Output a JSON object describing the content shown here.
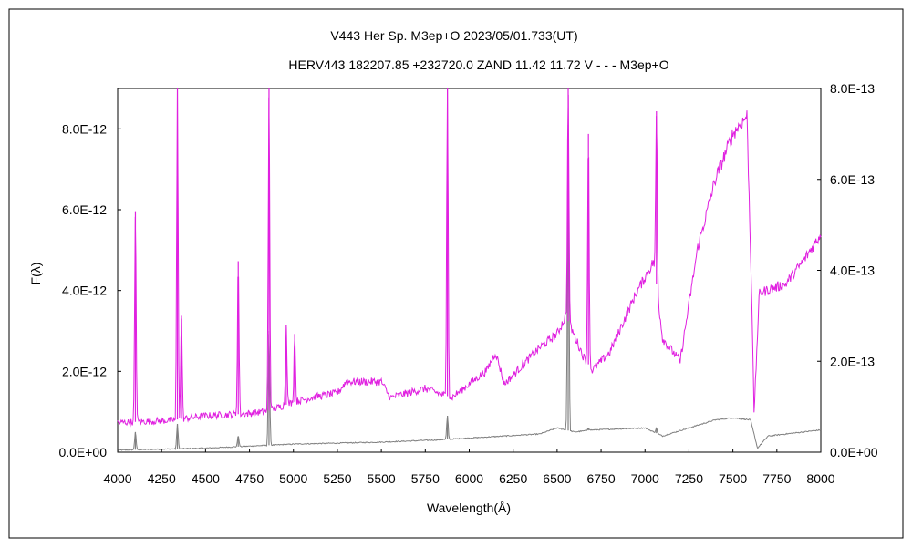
{
  "chart_data": {
    "type": "line",
    "title_line1": "V443 Her    Sp. M3ep+O    2023/05/01.733(UT)",
    "title_line2": "HERV443 182207.85 +232720.0 ZAND 11.42 11.72 V - - - M3ep+O",
    "xlabel": "Wavelength(Å)",
    "ylabel": "F(λ)",
    "xlim": [
      4000,
      8000
    ],
    "x_ticks": [
      4000,
      4250,
      4500,
      4750,
      5000,
      5250,
      5500,
      5750,
      6000,
      6250,
      6500,
      6750,
      7000,
      7250,
      7500,
      7750,
      8000
    ],
    "x_tick_labels": [
      "4000",
      "4250",
      "4500",
      "4750",
      "5000",
      "5250",
      "5500",
      "5750",
      "6000",
      "6250",
      "6500",
      "6750",
      "7000",
      "7250",
      "7500",
      "7750",
      "8000"
    ],
    "y_left": {
      "lim": [
        0,
        9e-12
      ],
      "ticks": [
        0,
        2e-12,
        4e-12,
        6e-12,
        8e-12
      ],
      "tick_labels": [
        "0.0E+00",
        "2.0E-12",
        "4.0E-12",
        "6.0E-12",
        "8.0E-12"
      ]
    },
    "y_right": {
      "lim": [
        0,
        8e-13
      ],
      "ticks": [
        0,
        2e-13,
        4e-13,
        6e-13,
        8e-13
      ],
      "tick_labels": [
        "0.0E+00",
        "2.0E-13",
        "4.0E-13",
        "6.0E-13",
        "8.0E-13"
      ],
      "color": "#e020e0"
    },
    "grid": false,
    "series": [
      {
        "axis": "left",
        "color": "#808080",
        "continuum": [
          [
            4000,
            5e-14
          ],
          [
            4500,
            1e-13
          ],
          [
            5000,
            2e-13
          ],
          [
            5500,
            2.5e-13
          ],
          [
            5800,
            3e-13
          ],
          [
            6000,
            3.5e-13
          ],
          [
            6200,
            4e-13
          ],
          [
            6400,
            4.5e-13
          ],
          [
            6500,
            6e-13
          ],
          [
            6600,
            5e-13
          ],
          [
            6700,
            5.5e-13
          ],
          [
            7000,
            6e-13
          ],
          [
            7100,
            4e-13
          ],
          [
            7250,
            6e-13
          ],
          [
            7400,
            8e-13
          ],
          [
            7500,
            8.5e-13
          ],
          [
            7600,
            8e-13
          ],
          [
            7640,
            1e-13
          ],
          [
            7700,
            4e-13
          ],
          [
            8000,
            5.5e-13
          ]
        ],
        "lines": [
          [
            4101,
            5e-13
          ],
          [
            4340,
            7e-13
          ],
          [
            4686,
            4e-13
          ],
          [
            4861,
            3e-12
          ],
          [
            5876,
            9e-13
          ],
          [
            6563,
            8.1e-12
          ],
          [
            6678,
            6e-13
          ],
          [
            7065,
            6e-13
          ]
        ]
      },
      {
        "axis": "right",
        "color": "#e020e0",
        "continuum": [
          [
            4000,
            6.5e-14
          ],
          [
            4300,
            7e-14
          ],
          [
            4500,
            8e-14
          ],
          [
            4750,
            8.5e-14
          ],
          [
            4850,
            9e-14
          ],
          [
            5000,
            1.1e-13
          ],
          [
            5100,
            1.2e-13
          ],
          [
            5250,
            1.3e-13
          ],
          [
            5300,
            1.55e-13
          ],
          [
            5500,
            1.55e-13
          ],
          [
            5550,
            1.2e-13
          ],
          [
            5750,
            1.4e-13
          ],
          [
            5900,
            1.2e-13
          ],
          [
            6100,
            1.8e-13
          ],
          [
            6150,
            2.2e-13
          ],
          [
            6200,
            1.5e-13
          ],
          [
            6400,
            2.3e-13
          ],
          [
            6500,
            2.6e-13
          ],
          [
            6550,
            3e-13
          ],
          [
            6650,
            2.1e-13
          ],
          [
            6700,
            1.8e-13
          ],
          [
            6800,
            2.2e-13
          ],
          [
            6950,
            3.5e-13
          ],
          [
            7050,
            4.2e-13
          ],
          [
            7100,
            2.5e-13
          ],
          [
            7200,
            2e-13
          ],
          [
            7300,
            4.5e-13
          ],
          [
            7400,
            6e-13
          ],
          [
            7500,
            7e-13
          ],
          [
            7580,
            7.4e-13
          ],
          [
            7610,
            3e-13
          ],
          [
            7620,
            8e-14
          ],
          [
            7650,
            3.5e-13
          ],
          [
            7800,
            3.7e-13
          ],
          [
            7900,
            4.2e-13
          ],
          [
            8000,
            4.8e-13
          ]
        ],
        "lines": [
          [
            4101,
            5.3e-13
          ],
          [
            4340,
            8e-13
          ],
          [
            4363,
            3e-13
          ],
          [
            4686,
            4.2e-13
          ],
          [
            4861,
            8e-13
          ],
          [
            4959,
            2.8e-13
          ],
          [
            5007,
            2.6e-13
          ],
          [
            5876,
            8e-13
          ],
          [
            6563,
            8e-13
          ],
          [
            6678,
            7e-13
          ],
          [
            7065,
            7.5e-13
          ]
        ]
      }
    ]
  }
}
